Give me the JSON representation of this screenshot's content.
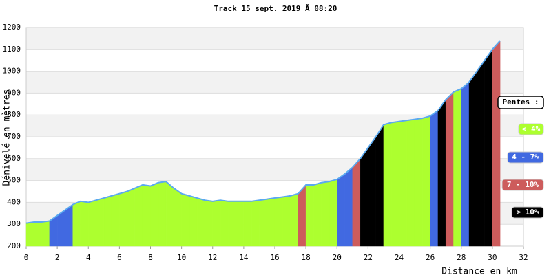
{
  "chart_data": {
    "type": "area",
    "title": "Track 15 sept. 2019 Ã  08:20",
    "xlabel": "Distance en km",
    "ylabel": "Dénivelé en mètres",
    "x": [
      0,
      0.5,
      1,
      1.5,
      2,
      2.5,
      3,
      3.5,
      4,
      4.5,
      5,
      5.5,
      6,
      6.5,
      7,
      7.5,
      8,
      8.5,
      9,
      9.5,
      10,
      10.5,
      11,
      11.5,
      12,
      12.5,
      13,
      13.5,
      14,
      14.5,
      15,
      15.5,
      16,
      16.5,
      17,
      17.5,
      18,
      18.5,
      19,
      19.5,
      20,
      20.5,
      21,
      21.5,
      22,
      22.5,
      23,
      23.5,
      24,
      24.5,
      25,
      25.5,
      26,
      26.5,
      27,
      27.5,
      28,
      28.5,
      29,
      29.5,
      30,
      30.5
    ],
    "values": [
      305,
      310,
      310,
      315,
      340,
      365,
      390,
      405,
      400,
      410,
      420,
      430,
      440,
      450,
      465,
      480,
      475,
      490,
      495,
      465,
      440,
      430,
      420,
      410,
      405,
      410,
      405,
      405,
      405,
      405,
      410,
      415,
      420,
      425,
      430,
      440,
      480,
      480,
      490,
      495,
      505,
      530,
      560,
      600,
      650,
      700,
      755,
      765,
      770,
      775,
      780,
      785,
      795,
      820,
      870,
      905,
      920,
      950,
      1000,
      1050,
      1100,
      1140
    ],
    "class": [
      0,
      0,
      0,
      0,
      1,
      1,
      1,
      0,
      0,
      0,
      0,
      0,
      0,
      0,
      0,
      0,
      0,
      0,
      0,
      0,
      0,
      0,
      0,
      0,
      0,
      0,
      0,
      0,
      0,
      0,
      0,
      0,
      0,
      0,
      0,
      0,
      2,
      0,
      0,
      0,
      0,
      1,
      1,
      2,
      3,
      3,
      3,
      0,
      0,
      0,
      0,
      0,
      0,
      1,
      3,
      2,
      0,
      1,
      3,
      3,
      3,
      2
    ],
    "legend_title": "Pentes :",
    "legend": [
      {
        "name": "< 4%",
        "color": "#adff2f"
      },
      {
        "name": "4 - 7%",
        "color": "#4169e1"
      },
      {
        "name": "7 - 10%",
        "color": "#cd5c5c"
      },
      {
        "name": "> 10%",
        "color": "#000000"
      }
    ],
    "line_color": "#5aa9f0",
    "xlim": [
      0,
      32
    ],
    "ylim": [
      200,
      1200
    ],
    "xticks": [
      0,
      2,
      4,
      6,
      8,
      10,
      12,
      14,
      16,
      18,
      20,
      22,
      24,
      26,
      28,
      30,
      32
    ],
    "yticks": [
      200,
      300,
      400,
      500,
      600,
      700,
      800,
      900,
      1000,
      1100,
      1200
    ],
    "grid": true
  }
}
